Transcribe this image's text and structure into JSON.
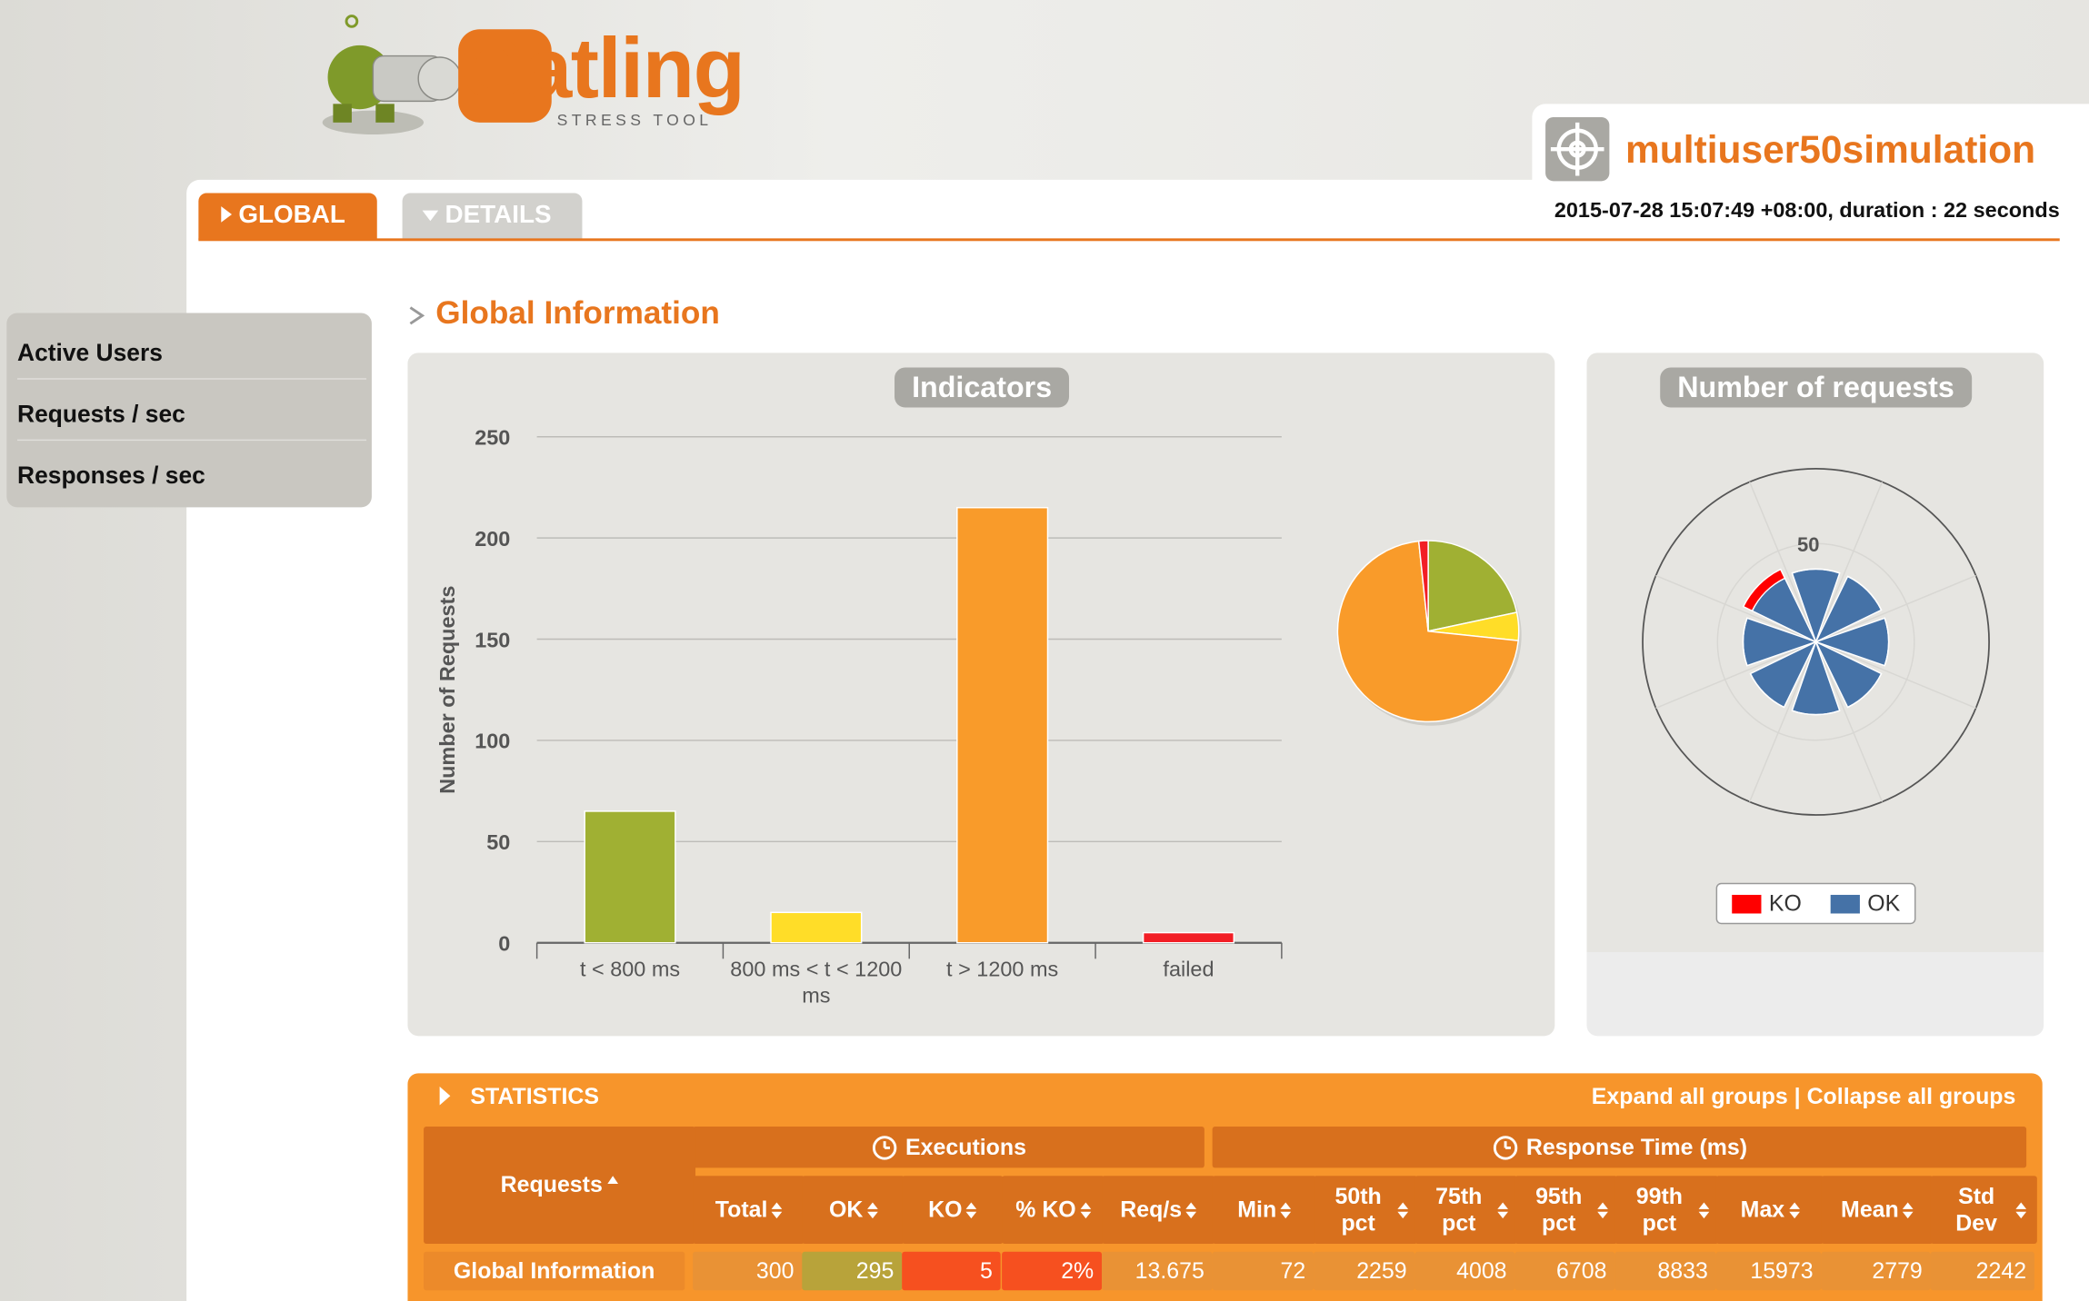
{
  "header": {
    "logo_title": "Gatling",
    "logo_subtitle": "STRESS TOOL",
    "simulation": "multiuser50simulation",
    "run_info": "2015-07-28 15:07:49 +08:00, duration : 22 seconds"
  },
  "tabs": [
    "GLOBAL",
    "DETAILS"
  ],
  "sidebar": [
    "Active Users",
    "Requests / sec",
    "Responses / sec"
  ],
  "section_title": "Global Information",
  "chart_data": [
    {
      "type": "bar",
      "title": "Indicators",
      "y_label": "Number of Requests",
      "categories": [
        "t < 800 ms",
        "800 ms < t < 1200 ms",
        "t > 1200 ms",
        "failed"
      ],
      "values": [
        65,
        15,
        215,
        5
      ],
      "colors": [
        "#a0b033",
        "#ffdd28",
        "#f99b2a",
        "#f21e25"
      ],
      "ylim": [
        0,
        250
      ],
      "yticks": [
        0,
        50,
        100,
        150,
        200,
        250
      ],
      "grid": true,
      "inset": "pie"
    },
    {
      "type": "polar-column",
      "title": "Number of requests",
      "categories": [
        null,
        null,
        null,
        null,
        null,
        null,
        null,
        null
      ],
      "series": [
        {
          "name": "KO",
          "color": "#ff0000",
          "values": [
            0,
            0,
            0,
            0,
            0,
            0,
            0,
            5
          ]
        },
        {
          "name": "OK",
          "color": "#4572a7",
          "values": [
            37,
            37,
            37,
            37,
            37,
            37,
            37,
            36
          ]
        }
      ],
      "rlim": [
        0,
        88
      ],
      "rticks": [
        50
      ],
      "stacked": true,
      "legend": "bottom"
    }
  ],
  "statistics": {
    "title": "STATISTICS",
    "links": "Expand all groups | Collapse all groups",
    "group_headers": [
      "Executions",
      "Response Time (ms)"
    ],
    "columns": [
      "Requests",
      "Total",
      "OK",
      "KO",
      "% KO",
      "Req/s",
      "Min",
      "50th pct",
      "75th pct",
      "95th pct",
      "99th pct",
      "Max",
      "Mean",
      "Std Dev"
    ],
    "rows": [
      [
        "Global Information",
        300,
        295,
        5,
        "2%",
        13.675,
        72,
        2259,
        4008,
        6708,
        8833,
        15973,
        2779,
        2242
      ]
    ]
  }
}
